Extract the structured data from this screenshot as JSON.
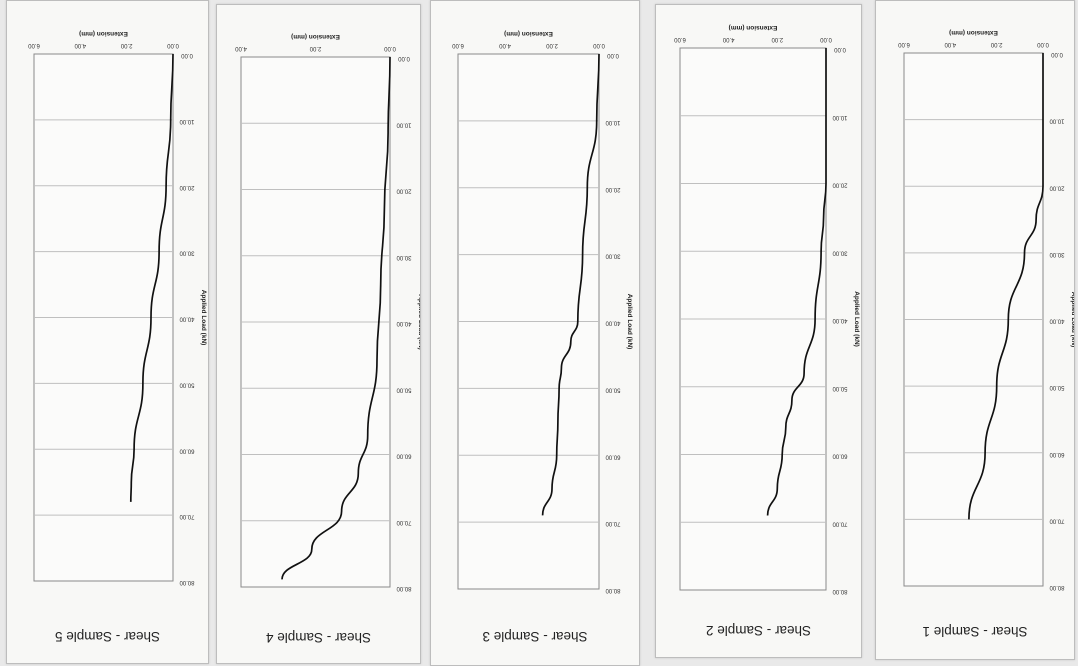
{
  "chart_data": [
    {
      "type": "line",
      "title": "Shear - Sample 5",
      "xlabel": "Applied Load (kN)",
      "ylabel": "Extension (mm)",
      "xlim": [
        0,
        80
      ],
      "ylim": [
        0,
        6
      ],
      "x_ticks": [
        "0.00",
        "10.00",
        "20.00",
        "30.00",
        "40.00",
        "50.00",
        "60.00",
        "70.00",
        "80.00"
      ],
      "y_ticks": [
        "0.00",
        "2.00",
        "4.00",
        "6.00"
      ],
      "grid": true,
      "x": [
        0,
        10,
        20,
        30,
        40,
        50,
        60,
        65,
        68
      ],
      "y": [
        0.0,
        0.1,
        0.3,
        0.6,
        0.95,
        1.3,
        1.68,
        1.8,
        1.82
      ]
    },
    {
      "type": "line",
      "title": "Shear - Sample 4",
      "xlabel": "Applied Load (kN)",
      "ylabel": "Extension (mm)",
      "xlim": [
        0,
        70
      ],
      "ylim": [
        0,
        4
      ],
      "x_ticks": [
        "0.00",
        "10.00",
        "20.00",
        "30.00",
        "40.00",
        "50.00",
        "60.00",
        "70.00",
        "80.00"
      ],
      "y_ticks": [
        "0.00",
        "2.00",
        "4.00"
      ],
      "grid": true,
      "x": [
        0,
        10,
        20,
        30,
        40,
        50,
        55,
        60,
        65,
        69
      ],
      "y": [
        0.0,
        0.05,
        0.15,
        0.25,
        0.35,
        0.6,
        0.85,
        1.3,
        2.1,
        2.9
      ]
    },
    {
      "type": "line",
      "title": "Shear - Sample 3",
      "xlabel": "Applied Load (kN)",
      "ylabel": "Extension (mm)",
      "xlim": [
        0,
        80
      ],
      "ylim": [
        0,
        6
      ],
      "x_ticks": [
        "0.00",
        "10.00",
        "20.00",
        "30.00",
        "40.00",
        "50.00",
        "60.00",
        "70.00",
        "80.00"
      ],
      "y_ticks": [
        "0.00",
        "2.00",
        "4.00",
        "6.00"
      ],
      "grid": true,
      "x": [
        0,
        10,
        20,
        30,
        40,
        43,
        47,
        50,
        55,
        60,
        65,
        69
      ],
      "y": [
        0.0,
        0.1,
        0.5,
        0.7,
        0.9,
        1.2,
        1.6,
        1.7,
        1.75,
        1.8,
        2.0,
        2.4
      ]
    },
    {
      "type": "line",
      "title": "Shear - Sample 2",
      "xlabel": "Applied Load (kN)",
      "ylabel": "Extension (mm)",
      "xlim": [
        0,
        80
      ],
      "ylim": [
        0,
        6
      ],
      "x_ticks": [
        "0.00",
        "10.00",
        "20.00",
        "30.00",
        "40.00",
        "50.00",
        "60.00",
        "70.00",
        "80.00"
      ],
      "y_ticks": [
        "0.00",
        "2.00",
        "4.00",
        "6.00"
      ],
      "grid": true,
      "x": [
        0,
        10,
        20,
        25,
        30,
        40,
        48,
        52,
        56,
        60,
        65,
        69
      ],
      "y": [
        0.0,
        0.0,
        0.0,
        0.1,
        0.2,
        0.45,
        0.9,
        1.4,
        1.65,
        1.8,
        2.0,
        2.4
      ]
    },
    {
      "type": "line",
      "title": "Shear - Sample 1",
      "xlabel": "Applied Load (kN)",
      "ylabel": "Extension (mm)",
      "xlim": [
        0,
        80
      ],
      "ylim": [
        0,
        6
      ],
      "x_ticks": [
        "0.00",
        "10.00",
        "20.00",
        "30.00",
        "40.00",
        "50.00",
        "60.00",
        "70.00",
        "80.00"
      ],
      "y_ticks": [
        "0.00",
        "2.00",
        "4.00",
        "6.00"
      ],
      "grid": true,
      "x": [
        0,
        10,
        20,
        25,
        30,
        40,
        50,
        60,
        70
      ],
      "y": [
        0.0,
        0.0,
        0.0,
        0.3,
        0.8,
        1.5,
        2.0,
        2.5,
        3.2
      ]
    }
  ]
}
